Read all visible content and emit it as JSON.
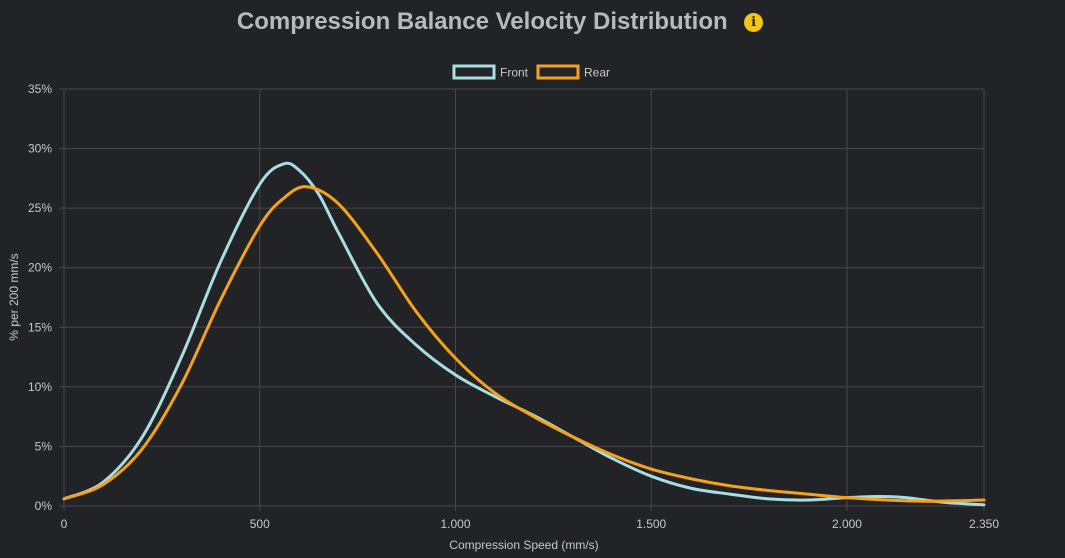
{
  "chart_data": {
    "type": "line",
    "title": "Compression Balance Velocity Distribution",
    "info_icon": "info-icon",
    "xlabel": "Compression Speed (mm/s)",
    "ylabel": "% per 200 mm/s",
    "xlim": [
      0,
      2350
    ],
    "ylim": [
      0,
      35
    ],
    "x_ticks": [
      0,
      500,
      1000,
      1500,
      2000,
      2350
    ],
    "x_tick_labels": [
      "0",
      "500",
      "1.000",
      "1.500",
      "2.000",
      "2.350"
    ],
    "y_ticks": [
      0,
      5,
      10,
      15,
      20,
      25,
      30,
      35
    ],
    "y_tick_labels": [
      "0%",
      "5%",
      "10%",
      "15%",
      "20%",
      "25%",
      "30%",
      "35%"
    ],
    "grid": true,
    "legend_position": "top-center",
    "series": [
      {
        "name": "Front",
        "color": "#a8dde2",
        "x": [
          0,
          100,
          200,
          300,
          400,
          500,
          560,
          600,
          650,
          700,
          800,
          900,
          1000,
          1100,
          1200,
          1300,
          1400,
          1500,
          1600,
          1700,
          1800,
          1900,
          2000,
          2080,
          2150,
          2250,
          2350
        ],
        "values": [
          0.6,
          2.0,
          5.8,
          12.5,
          20.5,
          27.0,
          28.7,
          28.2,
          26.2,
          23.0,
          17.0,
          13.5,
          11.0,
          9.2,
          7.6,
          5.8,
          4.0,
          2.5,
          1.5,
          1.0,
          0.6,
          0.5,
          0.7,
          0.8,
          0.7,
          0.3,
          0.1
        ]
      },
      {
        "name": "Rear",
        "color": "#f5a21b",
        "x": [
          0,
          100,
          200,
          300,
          400,
          500,
          560,
          620,
          700,
          800,
          900,
          1000,
          1100,
          1200,
          1300,
          1400,
          1500,
          1600,
          1700,
          1800,
          1900,
          2000,
          2100,
          2200,
          2350
        ],
        "values": [
          0.6,
          1.8,
          4.8,
          10.2,
          17.3,
          23.5,
          25.8,
          26.8,
          25.4,
          21.2,
          16.3,
          12.4,
          9.5,
          7.5,
          5.8,
          4.3,
          3.1,
          2.3,
          1.7,
          1.3,
          1.0,
          0.7,
          0.5,
          0.4,
          0.5
        ]
      }
    ]
  }
}
